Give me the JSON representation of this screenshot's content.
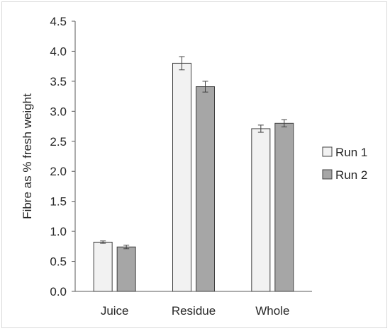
{
  "chart_data": {
    "type": "bar",
    "categories": [
      "Juice",
      "Residue",
      "Whole"
    ],
    "series": [
      {
        "name": "Run 1",
        "values": [
          0.82,
          3.8,
          2.71
        ],
        "errors": [
          0.02,
          0.11,
          0.06
        ],
        "color": "#f2f2f2"
      },
      {
        "name": "Run 2",
        "values": [
          0.74,
          3.41,
          2.8
        ],
        "errors": [
          0.03,
          0.09,
          0.06
        ],
        "color": "#a6a6a6"
      }
    ],
    "title": "",
    "xlabel": "",
    "ylabel": "Fibre as % fresh weight",
    "ylim": [
      0,
      4.5
    ],
    "yticks": [
      "0.0",
      "0.5",
      "1.0",
      "1.5",
      "2.0",
      "2.5",
      "3.0",
      "3.5",
      "4.0",
      "4.5"
    ],
    "grid": false,
    "legend_position": "right"
  }
}
